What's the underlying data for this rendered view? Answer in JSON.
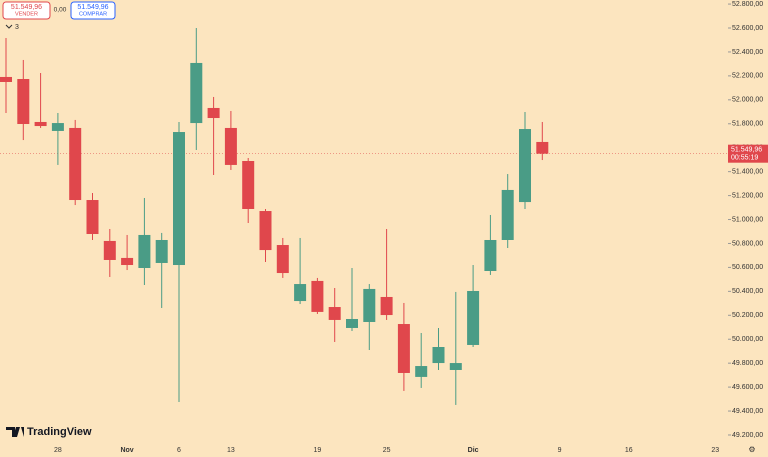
{
  "chart_data": {
    "type": "candlestick",
    "widgets": {
      "sell_price": "51.549,96",
      "sell_label": "VENDER",
      "spread": "0,00",
      "buy_price": "51.549,96",
      "buy_label": "COMPRAR",
      "indicators_count": "3",
      "logo": "TradingView"
    },
    "categories": [
      null,
      null,
      null,
      "28",
      null,
      null,
      null,
      "Nov",
      null,
      null,
      "6",
      null,
      null,
      "13",
      null,
      null,
      null,
      null,
      "19",
      null,
      null,
      null,
      "25",
      null,
      null,
      null,
      null,
      "Dic",
      null,
      null,
      null,
      null,
      "9",
      null,
      null,
      null,
      "16",
      null,
      null,
      null,
      null,
      "23"
    ],
    "open": [
      52191,
      52174,
      51815,
      51740,
      51765,
      51163,
      50821,
      50679,
      50595,
      50637,
      50620,
      51806,
      51932,
      51765,
      51489,
      51071,
      50787,
      50319,
      50487,
      50269,
      50094,
      50144,
      50353,
      50127,
      49685,
      49801,
      49743,
      49952,
      50570,
      50829,
      51146,
      51648,
      null,
      null,
      null,
      null,
      null,
      null,
      null,
      null,
      null,
      null
    ],
    "high": [
      52517,
      52333,
      52224,
      51890,
      51832,
      51222,
      50921,
      50871,
      51180,
      50888,
      51815,
      52600,
      52024,
      51907,
      51514,
      51088,
      50846,
      50846,
      50512,
      50428,
      50595,
      50461,
      50921,
      50303,
      50052,
      50094,
      50395,
      50620,
      51038,
      51380,
      51898,
      51815,
      null,
      null,
      null,
      null,
      null,
      null,
      null,
      null,
      null,
      null
    ],
    "low": [
      51890,
      51664,
      51765,
      51456,
      51121,
      50829,
      50520,
      50578,
      50453,
      50261,
      49476,
      51581,
      51372,
      51414,
      50971,
      50645,
      50512,
      50294,
      50211,
      49977,
      50069,
      49910,
      50161,
      49568,
      49593,
      49743,
      49451,
      49935,
      50537,
      50762,
      51088,
      51497,
      null,
      null,
      null,
      null,
      null,
      null,
      null,
      null,
      null,
      null
    ],
    "close": [
      52149,
      51798,
      51781,
      51806,
      51163,
      50879,
      50662,
      50620,
      50871,
      50829,
      51731,
      52308,
      51848,
      51456,
      51088,
      50745,
      50553,
      50461,
      50228,
      50161,
      50169,
      50420,
      50202,
      49718,
      49776,
      49935,
      49801,
      50403,
      50829,
      51247,
      51756,
      51549.96,
      null,
      null,
      null,
      null,
      null,
      null,
      null,
      null,
      null,
      null
    ],
    "up_color": "#4a9c86",
    "down_color": "#e0474c",
    "last_price": {
      "value": 51549.96,
      "label": "51.549,96"
    },
    "countdown": "00:55:19",
    "ylim": [
      49133,
      52834
    ],
    "yticks": [
      {
        "value": 49200,
        "label": "49.200,00"
      },
      {
        "value": 49400,
        "label": "49.400,00"
      },
      {
        "value": 49600,
        "label": "49.600,00"
      },
      {
        "value": 49800,
        "label": "49.800,00"
      },
      {
        "value": 50000,
        "label": "50.000,00"
      },
      {
        "value": 50200,
        "label": "50.200,00"
      },
      {
        "value": 50400,
        "label": "50.400,00"
      },
      {
        "value": 50600,
        "label": "50.600,00"
      },
      {
        "value": 50800,
        "label": "50.800,00"
      },
      {
        "value": 51000,
        "label": "51.000,00"
      },
      {
        "value": 51200,
        "label": "51.200,00"
      },
      {
        "value": 51400,
        "label": "51.400,00"
      },
      {
        "value": 51600,
        "label": "51.600,00"
      },
      {
        "value": 51800,
        "label": "51.800,00"
      },
      {
        "value": 52000,
        "label": "52.000,00"
      },
      {
        "value": 52200,
        "label": "52.200,00"
      },
      {
        "value": 52400,
        "label": "52.400,00"
      },
      {
        "value": 52600,
        "label": "52.600,00"
      },
      {
        "value": 52800,
        "label": "52.800,00"
      }
    ]
  }
}
